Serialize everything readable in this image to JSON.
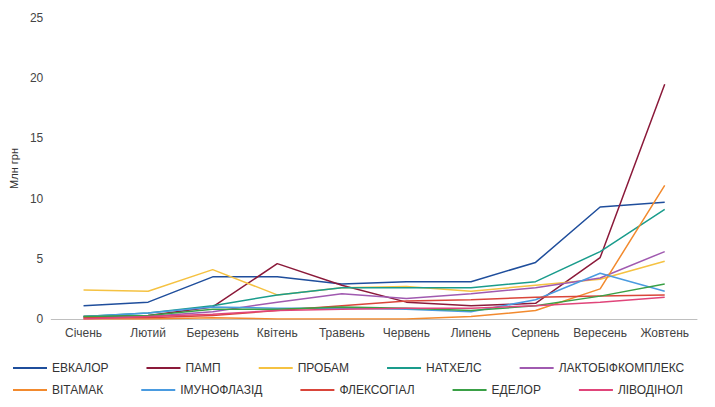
{
  "chart_data": {
    "type": "line",
    "y_label": "Млн грн",
    "categories": [
      "Січень",
      "Лютий",
      "Березень",
      "Квітень",
      "Травень",
      "Червень",
      "Липень",
      "Серпень",
      "Вересень",
      "Жовтень"
    ],
    "series": [
      {
        "name": "ЕВКАЛОР",
        "color": "#1f4e9c",
        "values": [
          1.1,
          1.4,
          3.5,
          3.5,
          2.9,
          3.1,
          3.1,
          4.7,
          9.3,
          9.7
        ]
      },
      {
        "name": "ПАМП",
        "color": "#8b1a3a",
        "values": [
          0.2,
          0.3,
          1.0,
          4.6,
          2.8,
          1.4,
          1.1,
          1.3,
          5.1,
          19.5
        ]
      },
      {
        "name": "ПРОБАМ",
        "color": "#f5c242",
        "values": [
          2.4,
          2.3,
          4.1,
          2.0,
          2.6,
          2.7,
          2.3,
          2.8,
          3.3,
          4.8
        ]
      },
      {
        "name": "НАТХЕЛС",
        "color": "#1a9c8c",
        "values": [
          0.2,
          0.5,
          1.1,
          2.0,
          2.6,
          2.6,
          2.6,
          3.1,
          5.6,
          9.1
        ]
      },
      {
        "name": "ЛАКТОБІФКОМПЛЕКС",
        "color": "#a05ab0",
        "values": [
          0.1,
          0.2,
          0.6,
          1.4,
          2.1,
          1.7,
          2.1,
          2.6,
          3.4,
          5.6
        ]
      },
      {
        "name": "ВІТАМАК",
        "color": "#f28a2e",
        "values": [
          0.0,
          0.0,
          0.1,
          0.0,
          0.0,
          0.0,
          0.2,
          0.7,
          2.5,
          11.1
        ]
      },
      {
        "name": "ІМУНОФЛАЗІД",
        "color": "#4a9be0",
        "values": [
          0.2,
          0.5,
          1.0,
          0.9,
          0.9,
          0.8,
          0.6,
          1.6,
          3.8,
          2.3
        ]
      },
      {
        "name": "ФЛЕКСОГІАЛ",
        "color": "#d9453a",
        "values": [
          0.1,
          0.1,
          0.3,
          0.7,
          1.1,
          1.5,
          1.6,
          1.8,
          1.9,
          2.0
        ]
      },
      {
        "name": "ЕДЕЛОР",
        "color": "#3aa046",
        "values": [
          0.2,
          0.3,
          0.8,
          0.8,
          1.0,
          0.9,
          0.7,
          1.1,
          1.9,
          2.9
        ]
      },
      {
        "name": "ЛІВОДІНОЛ",
        "color": "#e0457a",
        "values": [
          0.0,
          0.2,
          0.4,
          0.7,
          0.8,
          0.9,
          0.9,
          1.1,
          1.4,
          1.8
        ]
      }
    ],
    "ylim": [
      0,
      25
    ],
    "yticks": [
      0,
      5,
      10,
      15,
      20,
      25
    ],
    "grid": false,
    "legend": "bottom"
  }
}
